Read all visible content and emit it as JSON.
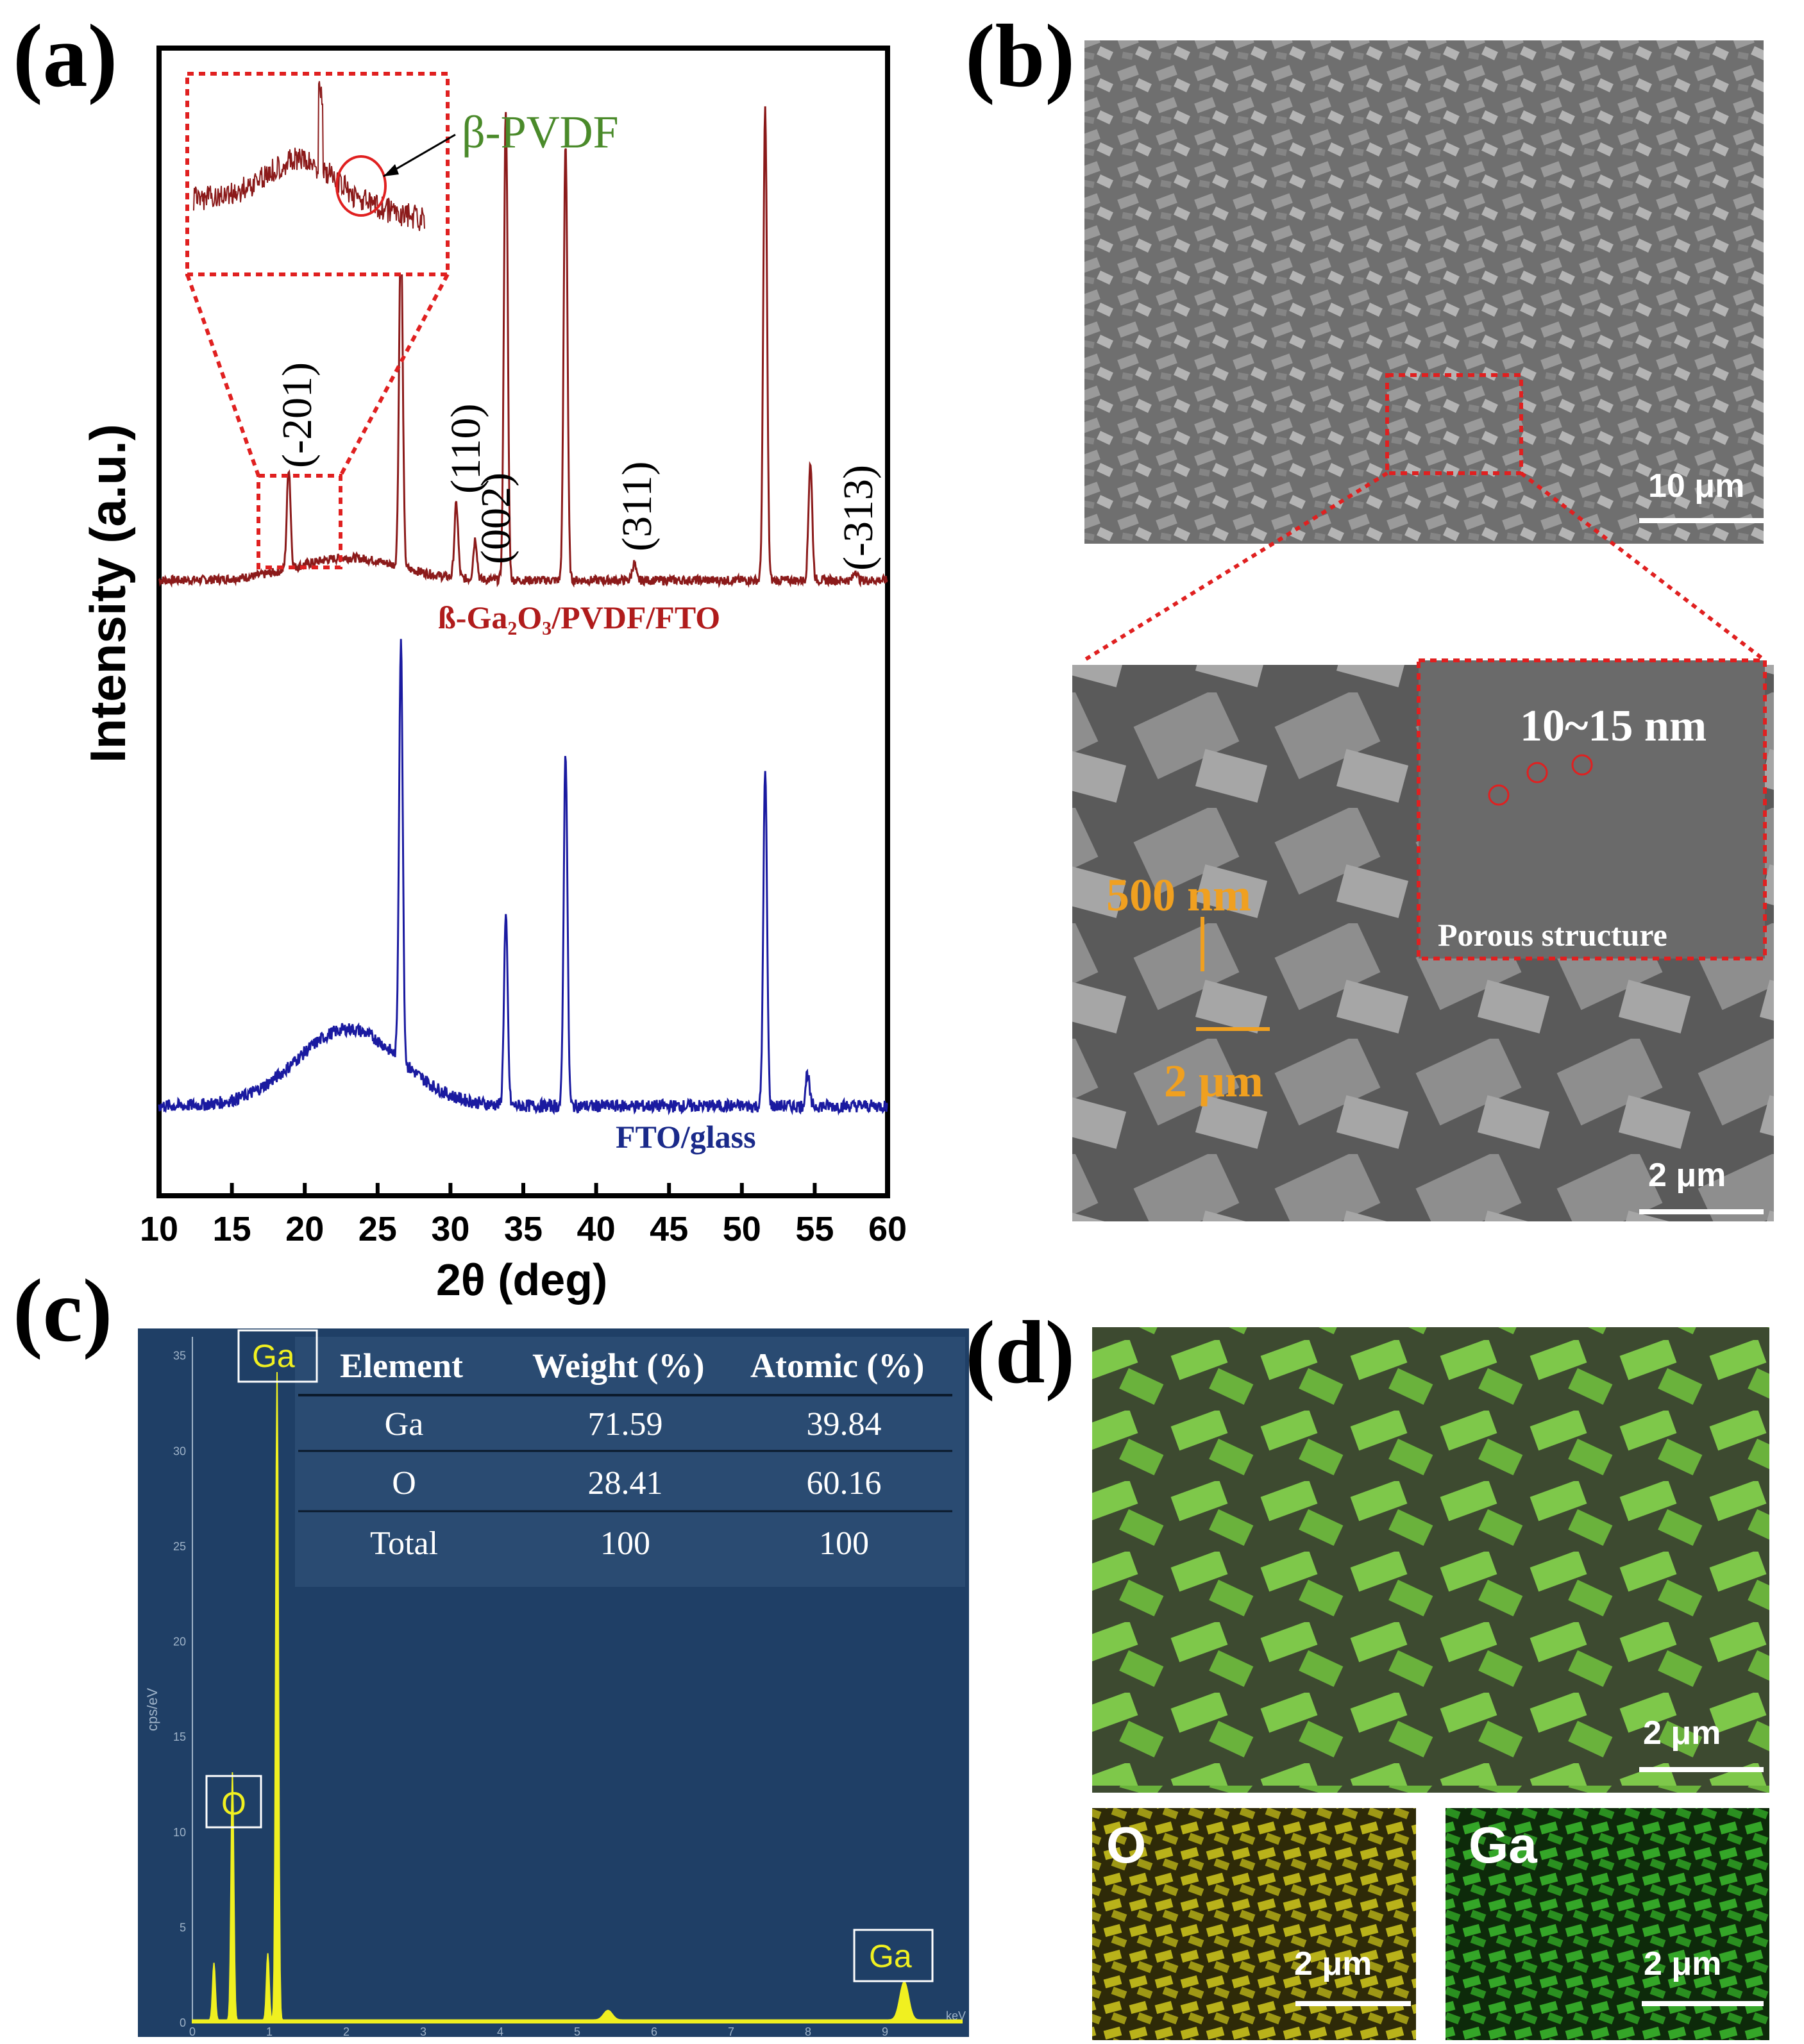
{
  "panels": {
    "a": "(a)",
    "b": "(b)",
    "c": "(c)",
    "d": "(d)"
  },
  "xrd": {
    "type": "line",
    "xlabel": "2θ (deg)",
    "ylabel": "Intensity (a.u.)",
    "xlim": [
      10,
      60
    ],
    "xticks": [
      "10",
      "15",
      "20",
      "25",
      "30",
      "35",
      "40",
      "45",
      "50",
      "55",
      "60"
    ],
    "series": [
      {
        "name": "ß-Ga₂O₃/PVDF/FTO",
        "color": "#8b1a1a",
        "peaks": [
          {
            "x": 18.9,
            "h": 0.3
          },
          {
            "x": 26.6,
            "h": 1.0
          },
          {
            "x": 30.4,
            "h": 0.22
          },
          {
            "x": 31.7,
            "h": 0.12
          },
          {
            "x": 33.8,
            "h": 1.4
          },
          {
            "x": 37.9,
            "h": 1.3
          },
          {
            "x": 42.6,
            "h": 0.05
          },
          {
            "x": 51.6,
            "h": 1.4
          },
          {
            "x": 54.7,
            "h": 0.35
          },
          {
            "x": 57.8,
            "h": 0.03
          }
        ]
      },
      {
        "name": "FTO/glass",
        "color": "#1a1aa0",
        "peaks": [
          {
            "x": 26.6,
            "h": 1.0
          },
          {
            "x": 33.8,
            "h": 0.45
          },
          {
            "x": 37.9,
            "h": 0.85
          },
          {
            "x": 51.6,
            "h": 0.8
          },
          {
            "x": 54.5,
            "h": 0.08
          }
        ]
      }
    ],
    "annotations": [
      "(-201)",
      "(110)",
      "(002)",
      "(311)",
      "(-313)"
    ],
    "inset_label": "β-PVDF",
    "label_top": "ß-Ga₂O₃/PVDF/FTO",
    "label_bottom": "FTO/glass"
  },
  "sem": {
    "scale_top": "10 μm",
    "scale_bottom": "2 μm",
    "pore_size": "10~15 nm",
    "porous_label": "Porous structure",
    "thickness": "500 nm",
    "width": "2 μm"
  },
  "eds": {
    "headers": [
      "Element",
      "Weight (%)",
      "Atomic (%)"
    ],
    "rows": [
      [
        "Ga",
        "71.59",
        "39.84"
      ],
      [
        "O",
        "28.41",
        "60.16"
      ],
      [
        "Total",
        "100",
        "100"
      ]
    ],
    "peak_labels": [
      "Ga",
      "O",
      "Ga"
    ],
    "ylabel": "cps/eV",
    "xunit": "keV",
    "yticks": [
      "0",
      "5",
      "10",
      "15",
      "20",
      "25",
      "30",
      "35"
    ],
    "xticks": [
      "0",
      "1",
      "2",
      "3",
      "4",
      "5",
      "6",
      "7",
      "8",
      "9"
    ],
    "chart_data": {
      "type": "line",
      "x_unit": "keV",
      "y_unit": "cps/eV",
      "xlim": [
        0,
        10
      ],
      "ylim": [
        0,
        36
      ],
      "peaks": [
        {
          "x": 0.28,
          "y": 3.0
        },
        {
          "x": 0.52,
          "y": 13.0
        },
        {
          "x": 0.98,
          "y": 3.5
        },
        {
          "x": 1.1,
          "y": 34.0
        },
        {
          "x": 5.4,
          "y": 0.5
        },
        {
          "x": 9.25,
          "y": 2.0
        }
      ]
    }
  },
  "mapping": {
    "o_label": "O",
    "ga_label": "Ga",
    "scale": "2 μm",
    "colors": {
      "o": "#c9c21f",
      "ga": "#3fb52a",
      "overlay": "#7ec84a"
    }
  }
}
